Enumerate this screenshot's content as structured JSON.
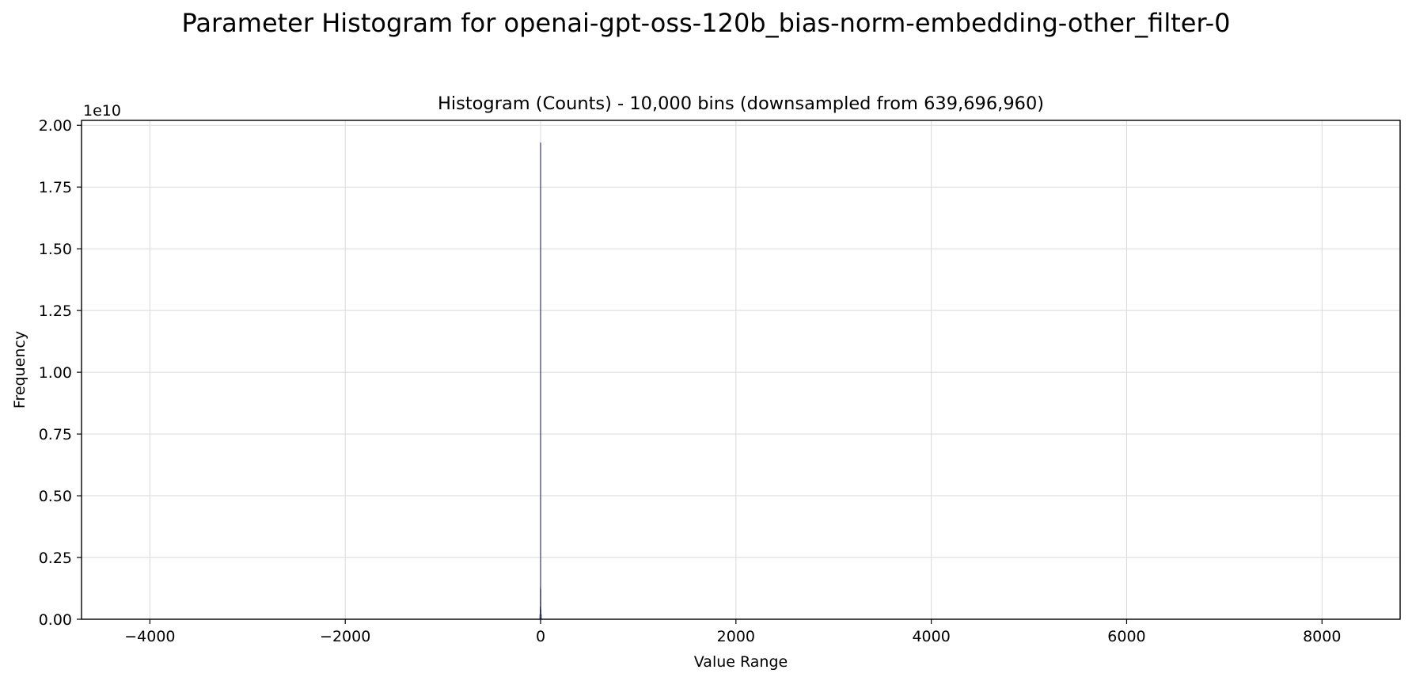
{
  "chart_data": {
    "type": "bar",
    "title": "Parameter Histogram for openai-gpt-oss-120b_bias-norm-embedding-other_filter-0",
    "subtitle": "Histogram (Counts) - 10,000 bins (downsampled from 639,696,960)",
    "xlabel": "Value Range",
    "ylabel": "Frequency",
    "y_offset_label": "1e10",
    "y_scale": 10000000000,
    "xlim": [
      -4700,
      8800
    ],
    "ylim": [
      0,
      2.02
    ],
    "grid": true,
    "bar_color": "#2f3a5c",
    "x_ticks": [
      -4000,
      -2000,
      0,
      2000,
      4000,
      6000,
      8000
    ],
    "x_tick_labels": [
      "−4000",
      "−2000",
      "0",
      "2000",
      "4000",
      "6000",
      "8000"
    ],
    "y_ticks": [
      0,
      0.25,
      0.5,
      0.75,
      1.0,
      1.25,
      1.5,
      1.75,
      2.0
    ],
    "y_tick_labels": [
      "0.00",
      "0.25",
      "0.50",
      "0.75",
      "1.00",
      "1.25",
      "1.50",
      "1.75",
      "2.00"
    ],
    "bars": [
      {
        "x": -6,
        "value": 0.02
      },
      {
        "x": -3,
        "value": 0.05
      },
      {
        "x": -1,
        "value": 0.13
      },
      {
        "x": 0,
        "value": 1.93
      },
      {
        "x": 1,
        "value": 0.12
      },
      {
        "x": 3,
        "value": 0.04
      },
      {
        "x": 6,
        "value": 0.02
      }
    ]
  }
}
